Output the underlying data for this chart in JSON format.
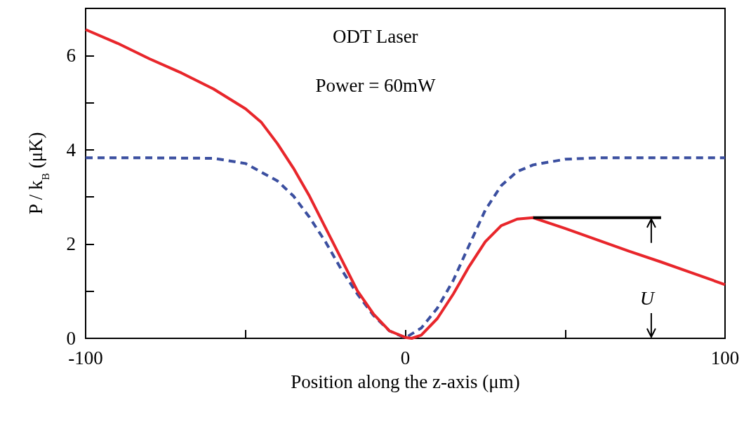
{
  "chart_data": {
    "type": "line",
    "xlabel": "Position along the z-axis (μm)",
    "ylabel": "P / k$_{B}$ (μK)",
    "annotations": [
      "ODT Laser",
      "Power = 60mW",
      "U"
    ],
    "xlim": [
      -100,
      100
    ],
    "xticks": [
      -100,
      {
        "value": -50,
        "label": null
      },
      0,
      {
        "value": 50,
        "label": null
      },
      100
    ],
    "ylim": [
      0,
      7
    ],
    "yticks": [
      0,
      {
        "value": 1,
        "label": null
      },
      2,
      {
        "value": 3,
        "label": null
      },
      4,
      {
        "value": 5,
        "label": null
      },
      6
    ],
    "grid": false,
    "marker": "none",
    "series": [
      {
        "color": "#3b4fa0",
        "line_style": "dashed",
        "x": [
          -100,
          -80,
          -60,
          -50,
          -40,
          -35,
          -30,
          -25,
          -20,
          -15,
          -10,
          -5,
          0,
          5,
          10,
          15,
          20,
          25,
          30,
          35,
          40,
          50,
          60,
          80,
          100
        ],
        "values": [
          3.83,
          3.83,
          3.82,
          3.71,
          3.34,
          3.02,
          2.57,
          2.05,
          1.46,
          0.94,
          0.49,
          0.16,
          0.01,
          0.22,
          0.64,
          1.23,
          1.98,
          2.72,
          3.24,
          3.54,
          3.68,
          3.8,
          3.83,
          3.83,
          3.83
        ]
      },
      {
        "color": "#e8262b",
        "line_style": "solid",
        "x": [
          -100,
          -90,
          -80,
          -70,
          -60,
          -50,
          -45,
          -40,
          -35,
          -30,
          -25,
          -20,
          -15,
          -10,
          -5,
          0,
          2,
          5,
          10,
          15,
          20,
          25,
          30,
          35,
          40,
          50,
          60,
          70,
          80,
          90,
          100
        ],
        "values": [
          6.55,
          6.26,
          5.93,
          5.63,
          5.29,
          4.87,
          4.58,
          4.13,
          3.61,
          3.02,
          2.35,
          1.68,
          1.01,
          0.52,
          0.16,
          0.02,
          0,
          0.07,
          0.42,
          0.94,
          1.53,
          2.05,
          2.39,
          2.53,
          2.56,
          2.33,
          2.09,
          1.85,
          1.62,
          1.38,
          1.14
        ]
      },
      {
        "color": "#000000",
        "line_style": "solid",
        "x": [
          40,
          80
        ],
        "values": [
          2.56,
          2.56
        ]
      }
    ]
  }
}
